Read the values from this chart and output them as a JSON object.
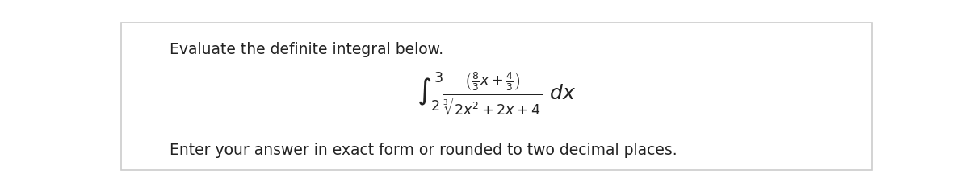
{
  "bg_color": "#ffffff",
  "border_color": "#cccccc",
  "title_text": "Evaluate the definite integral below.",
  "footer_text": "Enter your answer in exact form or rounded to two decimal places.",
  "title_fontsize": 13.5,
  "footer_fontsize": 13.5,
  "text_color": "#222222",
  "math_fontsize": 18
}
